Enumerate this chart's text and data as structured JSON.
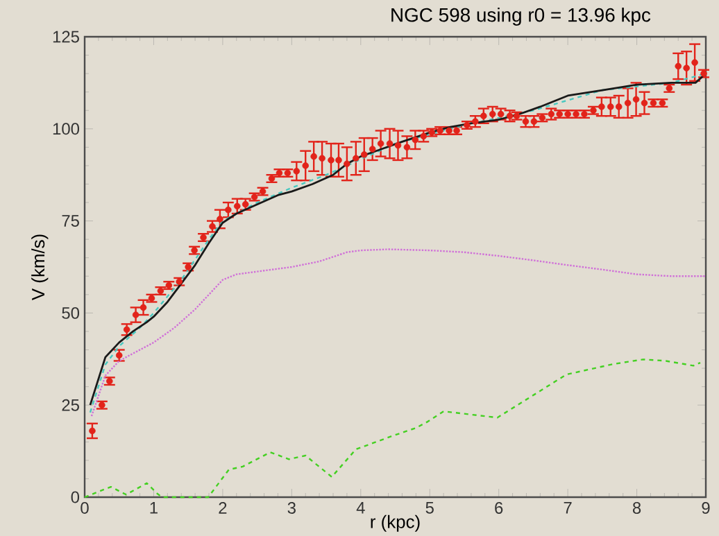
{
  "chart_data": {
    "type": "scatter",
    "title": "NGC 598 using r0 = 13.96 kpc",
    "xlabel": "r (kpc)",
    "ylabel": "V (km/s)",
    "xlim": [
      0,
      9
    ],
    "ylim": [
      0,
      125
    ],
    "xticks": [
      0,
      1,
      2,
      3,
      4,
      5,
      6,
      7,
      8,
      9
    ],
    "yticks": [
      0,
      25,
      50,
      75,
      100,
      125
    ],
    "grid": false,
    "series": [
      {
        "color": "#e2231a",
        "marker": "circle",
        "x": [
          0.11,
          0.25,
          0.36,
          0.5,
          0.61,
          0.74,
          0.85,
          0.97,
          1.1,
          1.22,
          1.37,
          1.5,
          1.59,
          1.72,
          1.85,
          1.96,
          2.08,
          2.21,
          2.33,
          2.46,
          2.58,
          2.71,
          2.82,
          2.94,
          3.07,
          3.2,
          3.32,
          3.44,
          3.57,
          3.68,
          3.8,
          3.93,
          4.05,
          4.17,
          4.29,
          4.42,
          4.54,
          4.67,
          4.79,
          4.91,
          5.03,
          5.15,
          5.28,
          5.39,
          5.54,
          5.66,
          5.78,
          5.91,
          6.03,
          6.16,
          6.26,
          6.39,
          6.51,
          6.63,
          6.76,
          6.88,
          7.0,
          7.12,
          7.24,
          7.37,
          7.49,
          7.62,
          7.74,
          7.87,
          7.99,
          8.11,
          8.24,
          8.37,
          8.47,
          8.6,
          8.72,
          8.84,
          8.97
        ],
        "values": [
          18,
          25,
          31.5,
          38.5,
          45.5,
          49.5,
          51.5,
          54,
          56,
          57.5,
          58.5,
          62.5,
          67,
          70.5,
          73.5,
          75.5,
          78,
          79,
          79.5,
          81.5,
          83,
          86.5,
          88,
          88,
          88.5,
          90,
          92.5,
          92,
          91.5,
          91.5,
          90.5,
          92,
          93,
          94.5,
          96,
          96,
          95.5,
          95,
          97,
          98,
          99,
          99.5,
          99.5,
          99.5,
          101,
          102,
          103.5,
          104,
          104,
          103.5,
          103.5,
          102,
          102,
          103,
          104,
          104,
          104,
          104,
          104,
          105,
          106,
          106,
          106,
          107,
          108,
          107,
          107,
          107,
          111,
          117,
          116.5,
          118,
          115
        ],
        "errors": [
          2,
          1,
          1,
          1.5,
          1.5,
          2,
          2,
          1,
          1,
          1,
          1,
          1,
          1,
          1,
          1.5,
          2.5,
          2,
          2,
          1.5,
          1,
          1,
          1,
          1,
          1,
          2.5,
          4,
          4,
          4.5,
          4.5,
          4.5,
          4.5,
          4.5,
          4.5,
          3,
          3.5,
          4,
          4,
          3,
          2.5,
          1.5,
          1,
          1,
          1,
          1,
          1,
          1.5,
          2,
          2,
          1.5,
          1.5,
          1,
          1.5,
          1.5,
          1,
          1.5,
          1,
          1,
          1,
          1,
          1,
          2.5,
          2.5,
          3,
          4,
          4.5,
          3,
          1,
          1,
          1,
          3.5,
          4.5,
          5,
          1
        ]
      },
      {
        "type": "line",
        "color": "#48c8c0",
        "line_style": "dashed",
        "x": [
          0.08,
          0.3,
          0.5,
          0.8,
          1.0,
          1.4,
          1.8,
          2.0,
          2.5,
          3.0,
          3.5,
          3.8,
          4.5,
          5.5,
          6.5,
          7.5,
          8.5,
          9.0
        ],
        "values": [
          23,
          36,
          41,
          46,
          50,
          59,
          70,
          75,
          80,
          84,
          87.5,
          90,
          96,
          101,
          105,
          110.5,
          112.5,
          115
        ]
      },
      {
        "type": "line",
        "color": "#1a1a1a",
        "line_style": "solid",
        "x": [
          0.08,
          0.3,
          0.5,
          0.7,
          0.9,
          1.0,
          1.2,
          1.4,
          1.6,
          1.8,
          2.0,
          2.2,
          2.5,
          2.8,
          3.0,
          3.3,
          3.6,
          3.8,
          4.0,
          4.3,
          4.6,
          5.0,
          5.3,
          5.6,
          6.0,
          6.3,
          6.6,
          7.0,
          7.5,
          8.0,
          8.5,
          8.85,
          9.0
        ],
        "values": [
          25,
          38,
          42,
          45,
          47.5,
          49,
          53,
          58,
          63,
          69,
          74.5,
          77,
          79.5,
          82,
          83,
          85,
          87.5,
          90.5,
          92.5,
          94.5,
          96.5,
          99,
          100.5,
          101.5,
          102.5,
          104,
          106,
          109,
          110.5,
          112,
          112.5,
          112.5,
          115
        ]
      },
      {
        "type": "line",
        "color": "#d070d8",
        "line_style": "dotted",
        "x": [
          0.1,
          0.3,
          0.5,
          0.8,
          1.0,
          1.3,
          1.6,
          1.8,
          2.0,
          2.2,
          2.6,
          3.0,
          3.4,
          3.8,
          4.0,
          4.4,
          5.0,
          5.5,
          6.0,
          6.5,
          7.0,
          7.5,
          8.0,
          8.5,
          9.0
        ],
        "values": [
          22,
          33,
          37,
          40,
          42,
          46,
          51,
          55,
          59,
          60.5,
          61.5,
          62.5,
          64,
          66.5,
          67,
          67.3,
          67,
          66.5,
          65.5,
          64.3,
          63,
          61.8,
          60.5,
          60,
          60
        ]
      },
      {
        "type": "line",
        "color": "#44d022",
        "line_style": "dashed",
        "x": [
          0,
          0.2,
          0.38,
          0.6,
          0.9,
          1.05,
          1.12,
          1.79,
          2.09,
          2.29,
          2.69,
          2.96,
          3.2,
          3.58,
          3.93,
          4.47,
          4.8,
          4.97,
          5.2,
          5.98,
          6.98,
          7.65,
          8.09,
          8.42,
          8.82,
          8.92
        ],
        "values": [
          0,
          1.5,
          2.8,
          0.7,
          3.8,
          1,
          0,
          0,
          7.5,
          8.3,
          12.2,
          10.3,
          11.3,
          5.5,
          13,
          16.7,
          18.8,
          20.5,
          23.3,
          21.6,
          33.3,
          36.1,
          37.4,
          37,
          35.7,
          36.5
        ]
      }
    ]
  }
}
